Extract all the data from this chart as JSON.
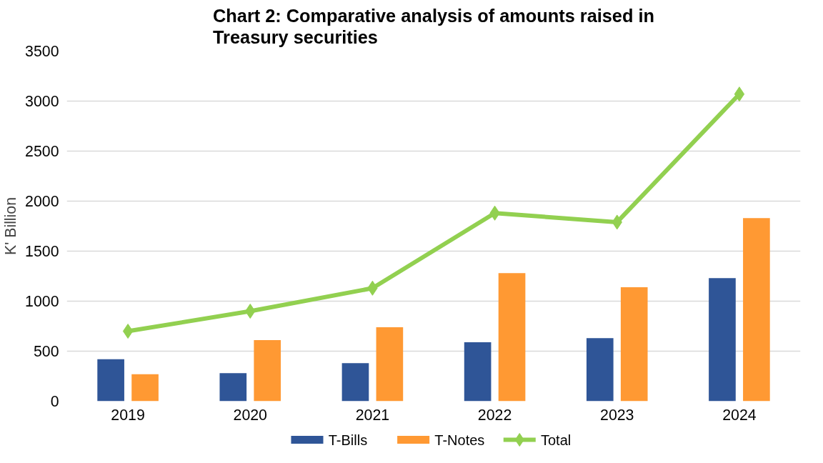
{
  "chart_data": {
    "type": "bar",
    "title": "Chart 2: Comparative analysis of amounts raised in Treasury securities",
    "ylabel": "K' Billion",
    "categories": [
      "2019",
      "2020",
      "2021",
      "2022",
      "2023",
      "2024"
    ],
    "series": [
      {
        "name": "T-Bills",
        "color": "#2f5597",
        "values": [
          420,
          280,
          380,
          590,
          630,
          1230
        ]
      },
      {
        "name": "T-Notes",
        "color": "#ff9933",
        "values": [
          270,
          610,
          740,
          1280,
          1140,
          1830
        ]
      },
      {
        "name": "Total",
        "type": "line",
        "color": "#92d050",
        "marker": "diamond",
        "values": [
          700,
          900,
          1130,
          1880,
          1790,
          3070
        ]
      }
    ],
    "ylim": [
      0,
      3500
    ],
    "yticks": [
      0,
      500,
      1000,
      1500,
      2000,
      2500,
      3000,
      3500
    ],
    "grid": "y",
    "legend": "bottom"
  }
}
